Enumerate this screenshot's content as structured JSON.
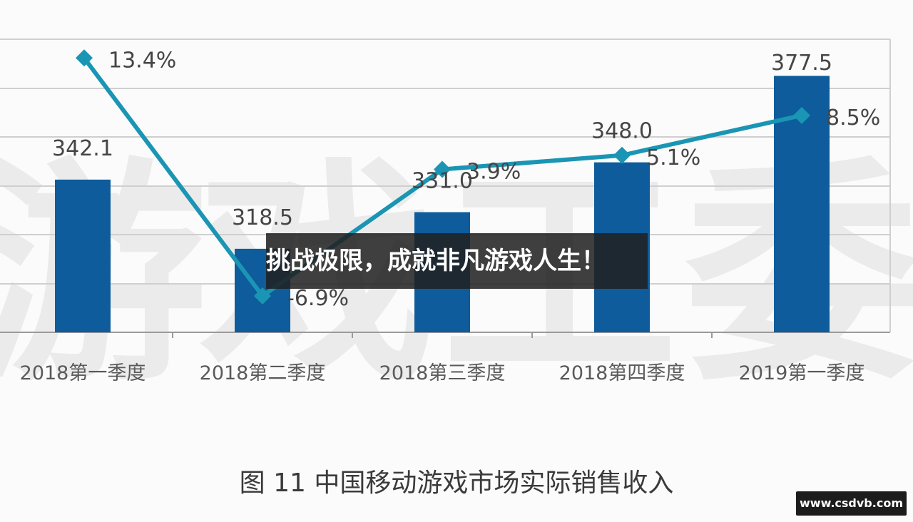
{
  "chart_data": {
    "type": "bar",
    "categories": [
      "2018第一季度",
      "2018第二季度",
      "2018第三季度",
      "2018第四季度",
      "2019第一季度"
    ],
    "series": [
      {
        "values": [
          342.1,
          318.5,
          331.0,
          348.0,
          377.5
        ],
        "labels": [
          "342.1",
          "318.5",
          "331.0",
          "348.0",
          "377.5"
        ]
      },
      {
        "type": "line",
        "values": [
          13.4,
          -6.9,
          3.9,
          5.1,
          8.5
        ],
        "labels": [
          "13.4%",
          "-6.9%",
          "3.9%",
          "5.1%",
          "8.5%"
        ]
      }
    ],
    "ylim_bar": [
      290,
      390
    ],
    "ylim_line": [
      -10,
      15
    ],
    "gridlines": true,
    "colors": {
      "bar": "#0e5c9b",
      "line": "#1a95b3",
      "grid": "#cfcfcf"
    },
    "caption": "图 11  中国移动游戏市场实际销售收入"
  },
  "watermark": {
    "chars": [
      "游",
      "戏",
      "工",
      "委"
    ]
  },
  "banner": {
    "text": "挑战极限，成就非凡游戏人生！"
  },
  "site_badge": {
    "text": "www.csdvb.com"
  }
}
